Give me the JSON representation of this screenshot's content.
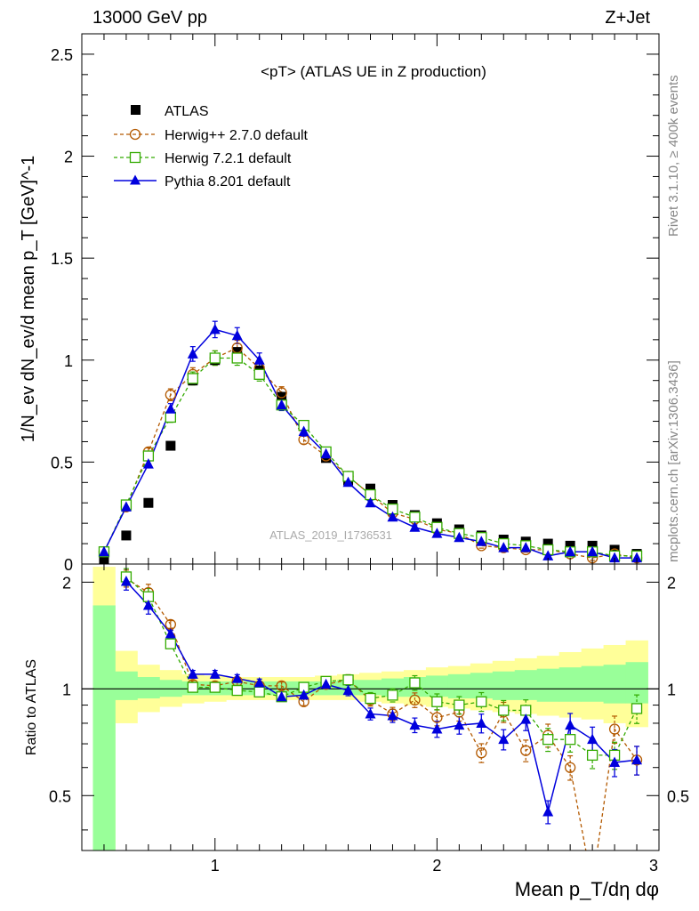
{
  "header": {
    "left": "13000 GeV pp",
    "right": "Z+Jet"
  },
  "side_text": {
    "rivet": "Rivet 3.1.10, ≥ 400k events",
    "source": "mcplots.cern.ch [arXiv:1306.3436]"
  },
  "watermark": "ATLAS_2019_I1736531",
  "colors": {
    "herwigpp": "#b35900",
    "herwig7": "#33aa00",
    "pythia": "#0000dd",
    "data": "#000000",
    "band_inner": "#99ff99",
    "band_outer": "#ffff99"
  },
  "chart_data": [
    {
      "type": "scatter",
      "title": "<pT> (ATLAS UE in Z production)",
      "ylabel": "1/N_ev dN_ev/d mean p_T [GeV]^-1",
      "xlim": [
        0.4,
        3.0
      ],
      "ylim": [
        0,
        2.6
      ],
      "yticks": [
        0,
        0.5,
        1,
        1.5,
        2,
        2.5
      ],
      "ytick_labels": [
        "0",
        "0.5",
        "1",
        "1.5",
        "2",
        "2.5"
      ],
      "legend_position": "top-left",
      "x": [
        0.5,
        0.6,
        0.7,
        0.8,
        0.9,
        1.0,
        1.1,
        1.2,
        1.3,
        1.4,
        1.5,
        1.6,
        1.7,
        1.8,
        1.9,
        2.0,
        2.1,
        2.2,
        2.3,
        2.4,
        2.5,
        2.6,
        2.7,
        2.8,
        2.9
      ],
      "series": [
        {
          "name": "ATLAS",
          "key": "data",
          "values": [
            0.02,
            0.14,
            0.3,
            0.58,
            0.9,
            1.0,
            1.04,
            0.95,
            0.82,
            0.68,
            0.52,
            0.41,
            0.37,
            0.29,
            0.24,
            0.2,
            0.17,
            0.14,
            0.12,
            0.11,
            0.1,
            0.09,
            0.09,
            0.07,
            0.05
          ]
        },
        {
          "name": "Herwig++ 2.7.0 default",
          "key": "herwigpp",
          "values": [
            0.06,
            0.28,
            0.55,
            0.83,
            0.93,
            1.01,
            1.06,
            0.96,
            0.84,
            0.61,
            0.53,
            0.43,
            0.34,
            0.25,
            0.22,
            0.17,
            0.15,
            0.09,
            0.08,
            0.07,
            0.07,
            0.05,
            0.03,
            0.05,
            0.03
          ]
        },
        {
          "name": "Herwig 7.2.1 default",
          "key": "herwig7",
          "values": [
            0.06,
            0.29,
            0.53,
            0.72,
            0.91,
            1.01,
            1.01,
            0.93,
            0.78,
            0.68,
            0.55,
            0.43,
            0.34,
            0.27,
            0.23,
            0.18,
            0.15,
            0.13,
            0.1,
            0.09,
            0.07,
            0.06,
            0.06,
            0.04,
            0.04
          ]
        },
        {
          "name": "Pythia 8.201 default",
          "key": "pythia",
          "values": [
            0.06,
            0.28,
            0.49,
            0.76,
            1.03,
            1.15,
            1.12,
            1.0,
            0.78,
            0.65,
            0.54,
            0.4,
            0.3,
            0.23,
            0.18,
            0.15,
            0.13,
            0.11,
            0.08,
            0.08,
            0.04,
            0.06,
            0.06,
            0.03,
            0.03
          ]
        }
      ]
    },
    {
      "type": "line",
      "ylabel": "Ratio to ATLAS",
      "xlabel": "Mean p_T/dη dφ",
      "xlim": [
        0.4,
        3.0
      ],
      "ylim": [
        0.35,
        2.25
      ],
      "xticks": [
        1,
        2,
        3
      ],
      "xtick_labels": [
        "1",
        "2",
        "3"
      ],
      "yticks": [
        0.5,
        1,
        2
      ],
      "ytick_labels": [
        "0.5",
        "1",
        "2"
      ],
      "reference_line": 1,
      "x": [
        0.6,
        0.7,
        0.8,
        0.9,
        1.0,
        1.1,
        1.2,
        1.3,
        1.4,
        1.5,
        1.6,
        1.7,
        1.8,
        1.9,
        2.0,
        2.1,
        2.2,
        2.3,
        2.4,
        2.5,
        2.6,
        2.7,
        2.8,
        2.9
      ],
      "series": [
        {
          "name": "Herwig++ 2.7.0 default",
          "key": "herwigpp",
          "values": [
            2.05,
            1.87,
            1.52,
            1.03,
            1.02,
            1.05,
            1.02,
            1.02,
            0.92,
            1.03,
            1.06,
            0.93,
            0.85,
            0.93,
            0.83,
            0.86,
            0.66,
            0.86,
            0.67,
            0.74,
            0.6,
            0.28,
            0.77,
            0.63
          ]
        },
        {
          "name": "Herwig 7.2.1 default",
          "key": "herwig7",
          "values": [
            2.07,
            1.82,
            1.34,
            1.01,
            1.01,
            0.99,
            0.98,
            0.95,
            1.01,
            1.05,
            1.06,
            0.94,
            0.96,
            1.04,
            0.92,
            0.9,
            0.92,
            0.87,
            0.87,
            0.72,
            0.72,
            0.65,
            0.65,
            0.88
          ]
        },
        {
          "name": "Pythia 8.201 default",
          "key": "pythia",
          "values": [
            2.01,
            1.72,
            1.43,
            1.1,
            1.1,
            1.07,
            1.04,
            0.95,
            0.96,
            1.03,
            0.99,
            0.85,
            0.84,
            0.79,
            0.77,
            0.79,
            0.8,
            0.72,
            0.82,
            0.45,
            0.79,
            0.72,
            0.62,
            0.63
          ]
        }
      ],
      "band": {
        "x_edges": [
          0.45,
          0.55,
          0.65,
          0.75,
          0.85,
          0.95,
          1.05,
          1.15,
          1.25,
          1.35,
          1.45,
          1.55,
          1.65,
          1.75,
          1.85,
          1.95,
          2.05,
          2.15,
          2.25,
          2.35,
          2.45,
          2.55,
          2.65,
          2.75,
          2.85,
          2.95
        ],
        "inner": [
          [
            0.35,
            1.72
          ],
          [
            0.93,
            1.12
          ],
          [
            0.94,
            1.08
          ],
          [
            0.95,
            1.06
          ],
          [
            0.96,
            1.05
          ],
          [
            0.96,
            1.05
          ],
          [
            0.96,
            1.05
          ],
          [
            0.96,
            1.05
          ],
          [
            0.96,
            1.05
          ],
          [
            0.96,
            1.05
          ],
          [
            0.96,
            1.05
          ],
          [
            0.96,
            1.06
          ],
          [
            0.96,
            1.06
          ],
          [
            0.95,
            1.07
          ],
          [
            0.95,
            1.08
          ],
          [
            0.95,
            1.09
          ],
          [
            0.94,
            1.1
          ],
          [
            0.94,
            1.11
          ],
          [
            0.93,
            1.12
          ],
          [
            0.93,
            1.13
          ],
          [
            0.92,
            1.14
          ],
          [
            0.92,
            1.15
          ],
          [
            0.92,
            1.16
          ],
          [
            0.91,
            1.17
          ],
          [
            0.91,
            1.19
          ]
        ],
        "outer": [
          [
            0.35,
            2.21
          ],
          [
            0.8,
            1.28
          ],
          [
            0.86,
            1.17
          ],
          [
            0.89,
            1.13
          ],
          [
            0.91,
            1.1
          ],
          [
            0.92,
            1.09
          ],
          [
            0.93,
            1.08
          ],
          [
            0.93,
            1.08
          ],
          [
            0.93,
            1.08
          ],
          [
            0.93,
            1.08
          ],
          [
            0.93,
            1.09
          ],
          [
            0.93,
            1.1
          ],
          [
            0.92,
            1.11
          ],
          [
            0.91,
            1.12
          ],
          [
            0.9,
            1.13
          ],
          [
            0.89,
            1.15
          ],
          [
            0.88,
            1.16
          ],
          [
            0.87,
            1.18
          ],
          [
            0.86,
            1.2
          ],
          [
            0.85,
            1.22
          ],
          [
            0.84,
            1.24
          ],
          [
            0.83,
            1.27
          ],
          [
            0.82,
            1.3
          ],
          [
            0.8,
            1.33
          ],
          [
            0.78,
            1.37
          ]
        ]
      }
    }
  ]
}
